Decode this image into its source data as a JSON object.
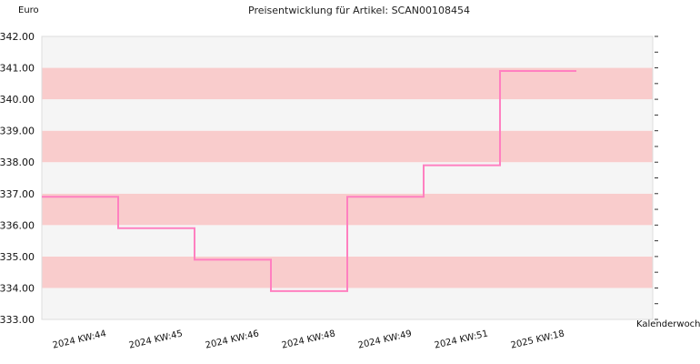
{
  "chart_data": {
    "type": "line",
    "step": true,
    "title": "Preisentwicklung für Artikel: SCAN00108454",
    "ylabel": "Euro",
    "xlabel": "Kalenderwoche",
    "ylim": [
      333.0,
      342.0
    ],
    "yticks": [
      333.0,
      334.0,
      335.0,
      336.0,
      337.0,
      338.0,
      339.0,
      340.0,
      341.0,
      342.0
    ],
    "ytick_labels": [
      "333.00",
      "334.00",
      "335.00",
      "336.00",
      "337.00",
      "338.00",
      "339.00",
      "340.00",
      "341.00",
      "342.00"
    ],
    "categories": [
      "2024 KW:44",
      "2024 KW:45",
      "2024 KW:46",
      "2024 KW:48",
      "2024 KW:49",
      "2024 KW:51",
      "2025 KW:18"
    ],
    "series": [
      {
        "values": [
          336.9,
          335.9,
          334.9,
          333.9,
          336.9,
          337.9,
          340.9
        ]
      }
    ],
    "grid": "alternating horizontal bands",
    "colors": {
      "line": "#ff80c0",
      "band_light": "#f5f5f5",
      "band_dark": "#f9cccc",
      "frame": "#dddddd"
    }
  }
}
